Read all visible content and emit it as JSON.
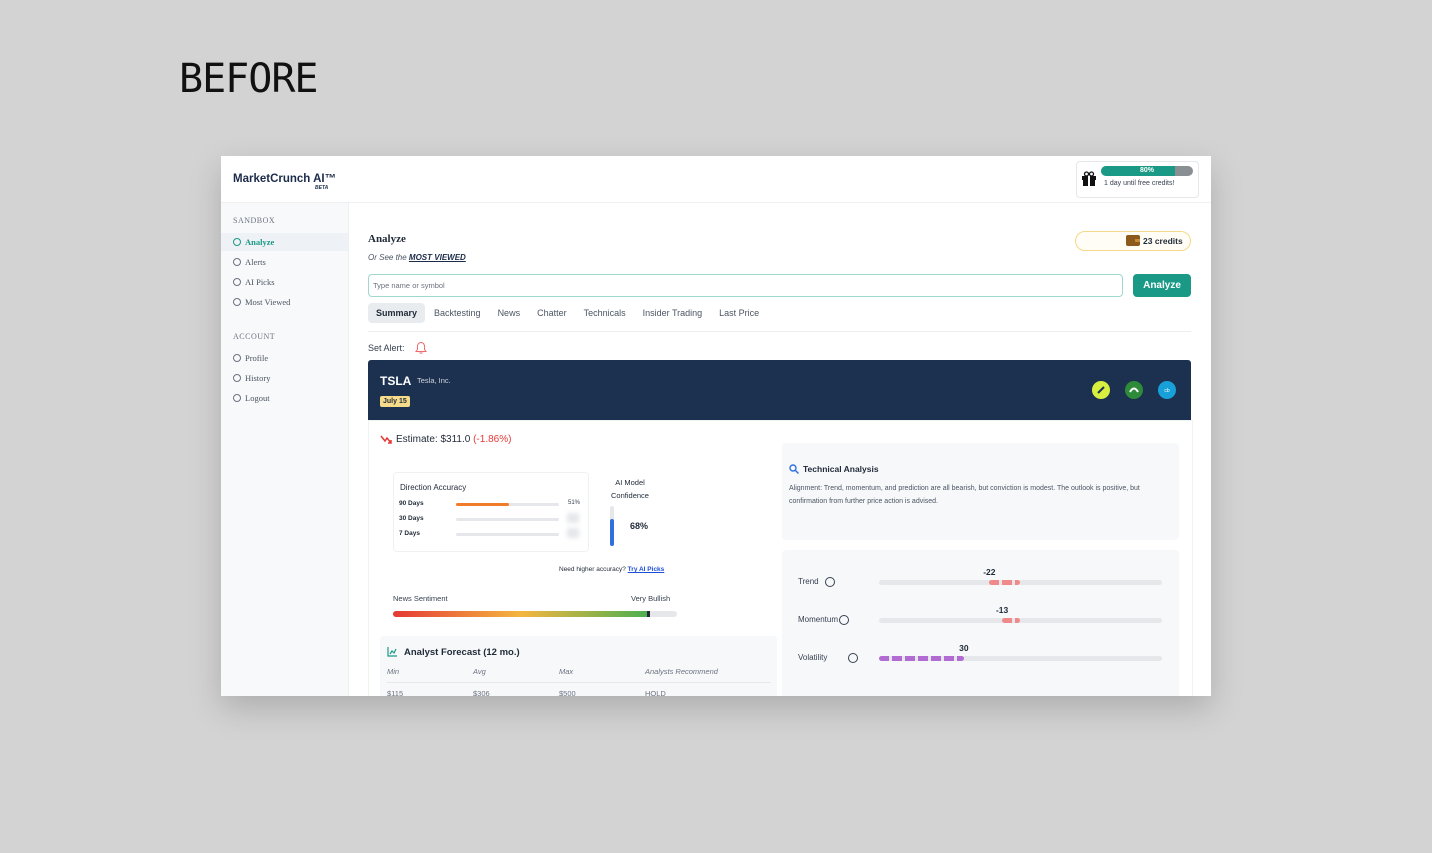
{
  "label": "BEFORE",
  "header": {
    "logo": "MarketCrunch AI™",
    "badge": "BETA",
    "progress": {
      "value": 80,
      "label": "80%"
    },
    "progress_note": "1 day until free credits!"
  },
  "sidebar": {
    "sections": [
      {
        "title": "SANDBOX",
        "items": [
          "Analyze",
          "Alerts",
          "AI Picks",
          "Most Viewed"
        ]
      },
      {
        "title": "ACCOUNT",
        "items": [
          "Profile",
          "History",
          "Logout"
        ]
      }
    ]
  },
  "main": {
    "title": "Analyze",
    "subtitle": "Or See the",
    "subtitle_link": "MOST VIEWED",
    "credits": "23 credits",
    "search_placeholder": "Type name or symbol",
    "button": "Analyze",
    "tabs": [
      "Summary",
      "Backtesting",
      "News",
      "Chatter",
      "Technicals",
      "Insider Trading",
      "Last Price"
    ],
    "set_alert": "Set Alert:"
  },
  "ticker": {
    "symbol": "TSLA",
    "name": "Tesla, Inc.",
    "date": "July 15"
  },
  "estimate": {
    "label": "Estimate: $311.0",
    "change": "(-1.86%)"
  },
  "accuracy": {
    "title": "Direction Accuracy",
    "rows": [
      {
        "label": "90 Days",
        "value": {
          "value": 51,
          "label": "51%"
        }
      },
      {
        "label": "30 Days"
      },
      {
        "label": "7 Days"
      }
    ],
    "confidence_title": "AI Model Confidence",
    "confidence": {
      "value": 68,
      "label": "68%"
    },
    "note": "Need higher accuracy?",
    "note_link": "Try AI Picks"
  },
  "sentiment": {
    "title": "News Sentiment",
    "label": "Very Bullish"
  },
  "forecast": {
    "title": "Analyst Forecast (12 mo.)",
    "columns": [
      "Min",
      "Avg",
      "Max",
      "Analysts Recommend"
    ],
    "row": [
      "$115",
      "$306",
      "$500",
      "HOLD"
    ]
  },
  "technical": {
    "title": "Technical Analysis",
    "text": "Alignment: Trend, momentum, and prediction are all bearish, but conviction is modest. The outlook is positive, but confirmation from further price action is advised."
  },
  "indicators": [
    {
      "name": "Trend",
      "value": -22,
      "range": [
        -100,
        100
      ],
      "color": "#f08a8a"
    },
    {
      "name": "Momentum",
      "value": -13,
      "range": [
        -100,
        100
      ],
      "color": "#f08a8a"
    },
    {
      "name": "Volatility",
      "value": 30,
      "range": [
        0,
        100
      ],
      "color": "#b36bd4"
    }
  ]
}
